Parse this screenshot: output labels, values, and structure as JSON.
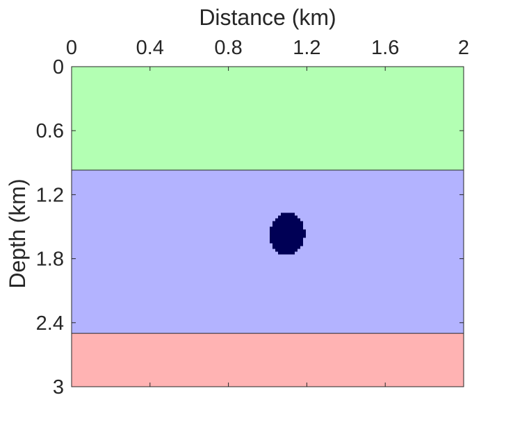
{
  "chart_data": {
    "type": "heatmap",
    "title": "",
    "xlabel": "Distance (km)",
    "ylabel": "Depth (km)",
    "xlim": [
      0,
      2
    ],
    "ylim": [
      0,
      3
    ],
    "y_reversed": true,
    "x_axis_location": "top",
    "x_ticks": [
      0,
      0.4,
      0.8,
      1.2,
      1.6,
      2
    ],
    "x_tick_labels": [
      "0",
      "0.4",
      "0.8",
      "1.2",
      "1.6",
      "2"
    ],
    "y_ticks": [
      0,
      0.6,
      1.2,
      1.8,
      2.4,
      3
    ],
    "y_tick_labels": [
      "0",
      "0.6",
      "1.2",
      "1.8",
      "2.4",
      "3"
    ],
    "grid": false,
    "legend": "none",
    "layers": [
      {
        "depth_top": 0,
        "depth_bottom": 0.97,
        "color": "#b3ffb3"
      },
      {
        "depth_top": 0.97,
        "depth_bottom": 2.5,
        "color": "#b3b3ff"
      },
      {
        "depth_top": 2.5,
        "depth_bottom": 3,
        "color": "#ffb3b3"
      }
    ],
    "anomaly": {
      "shape": "ellipse",
      "center_x": 1.1,
      "center_depth": 1.57,
      "radius_x": 0.09,
      "radius_depth": 0.2,
      "color": "#000055"
    }
  }
}
